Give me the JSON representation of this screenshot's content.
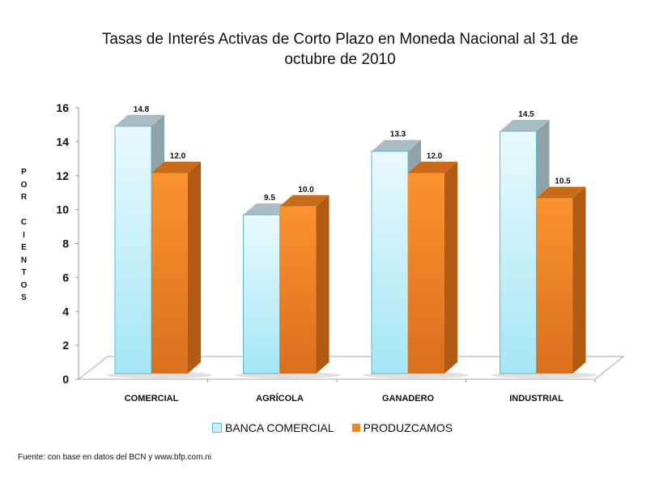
{
  "chart_data": {
    "type": "bar",
    "title": "Tasas de Interés Activas de Corto Plazo en Moneda Nacional al 31 de octubre de 2010",
    "ylabel": "POR CIENTOS",
    "xlabel": "",
    "categories": [
      "COMERCIAL",
      "AGRÍCOLA",
      "GANADERO",
      "INDUSTRIAL"
    ],
    "series": [
      {
        "name": "BANCA COMERCIAL",
        "values": [
          14.8,
          9.5,
          13.3,
          14.5
        ],
        "labels": [
          "14.8",
          "9.5",
          "13.3",
          "14.5"
        ],
        "color": "#aee9f7"
      },
      {
        "name": "PRODUZCAMOS",
        "values": [
          12.0,
          10.0,
          12.0,
          10.5
        ],
        "labels": [
          "12.0",
          "10.0",
          "12.0",
          "10.5"
        ],
        "color": "#f08a24"
      }
    ],
    "ylim": [
      0,
      16
    ],
    "yticks": [
      "0",
      "2",
      "4",
      "6",
      "8",
      "10",
      "12",
      "14",
      "16"
    ],
    "legend_position": "bottom",
    "grid": false
  },
  "ylabel_display": "P\nO\nR\n\nC\nI\nE\nN\nT\nO\nS",
  "source": "Fuente:  con base en datos del BCN y www.bfp.com.ni"
}
